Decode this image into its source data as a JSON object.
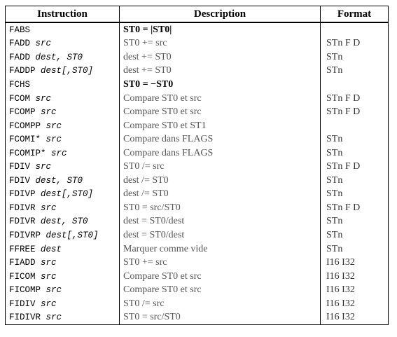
{
  "headers": [
    "Instruction",
    "Description",
    "Format"
  ],
  "rows": [
    {
      "op": "FABS",
      "arg": "",
      "desc": "ST0 = |ST0|",
      "fmt": ""
    },
    {
      "op": "FADD",
      "arg": "src",
      "desc": "ST0 += src",
      "fmt": "STn F D"
    },
    {
      "op": "FADD",
      "arg": "dest, ST0",
      "desc": "dest += ST0",
      "fmt": "STn"
    },
    {
      "op": "FADDP",
      "arg": "dest[,ST0]",
      "desc": "dest += ST0",
      "fmt": "STn"
    },
    {
      "op": "FCHS",
      "arg": "",
      "desc": "ST0 = −ST0",
      "fmt": ""
    },
    {
      "op": "FCOM",
      "arg": "src",
      "desc": "Compare ST0 et src",
      "fmt": "STn F D"
    },
    {
      "op": "FCOMP",
      "arg": "src",
      "desc": "Compare ST0 et src",
      "fmt": "STn F D"
    },
    {
      "op": "FCOMPP",
      "arg": "src",
      "desc": "Compare ST0 et ST1",
      "fmt": ""
    },
    {
      "op": "FCOMI*",
      "arg": "src",
      "desc": "Compare dans FLAGS",
      "fmt": "STn"
    },
    {
      "op": "FCOMIP*",
      "arg": "src",
      "desc": "Compare dans FLAGS",
      "fmt": "STn"
    },
    {
      "op": "FDIV",
      "arg": "src",
      "desc": "ST0 /= src",
      "fmt": "STn F D"
    },
    {
      "op": "FDIV",
      "arg": "dest, ST0",
      "desc": "dest /= ST0",
      "fmt": "STn"
    },
    {
      "op": "FDIVP",
      "arg": "dest[,ST0]",
      "desc": "dest /= ST0",
      "fmt": "STn"
    },
    {
      "op": "FDIVR",
      "arg": "src",
      "desc": "ST0 = src/ST0",
      "fmt": "STn F D"
    },
    {
      "op": "FDIVR",
      "arg": "dest, ST0",
      "desc": "dest = ST0/dest",
      "fmt": "STn"
    },
    {
      "op": "FDIVRP",
      "arg": "dest[,ST0]",
      "desc": "dest = ST0/dest",
      "fmt": "STn"
    },
    {
      "op": "FFREE",
      "arg": "dest",
      "desc": "Marquer comme vide",
      "fmt": "STn"
    },
    {
      "op": "FIADD",
      "arg": "src",
      "desc": "ST0 += src",
      "fmt": "I16 I32"
    },
    {
      "op": "FICOM",
      "arg": "src",
      "desc": "Compare ST0 et src",
      "fmt": "I16 I32"
    },
    {
      "op": "FICOMP",
      "arg": "src",
      "desc": "Compare ST0 et src",
      "fmt": "I16 I32"
    },
    {
      "op": "FIDIV",
      "arg": "src",
      "desc": "ST0 /= src",
      "fmt": "I16 I32"
    },
    {
      "op": "FIDIVR",
      "arg": "src",
      "desc": "ST0 = src/ST0",
      "fmt": "I16 I32"
    }
  ]
}
